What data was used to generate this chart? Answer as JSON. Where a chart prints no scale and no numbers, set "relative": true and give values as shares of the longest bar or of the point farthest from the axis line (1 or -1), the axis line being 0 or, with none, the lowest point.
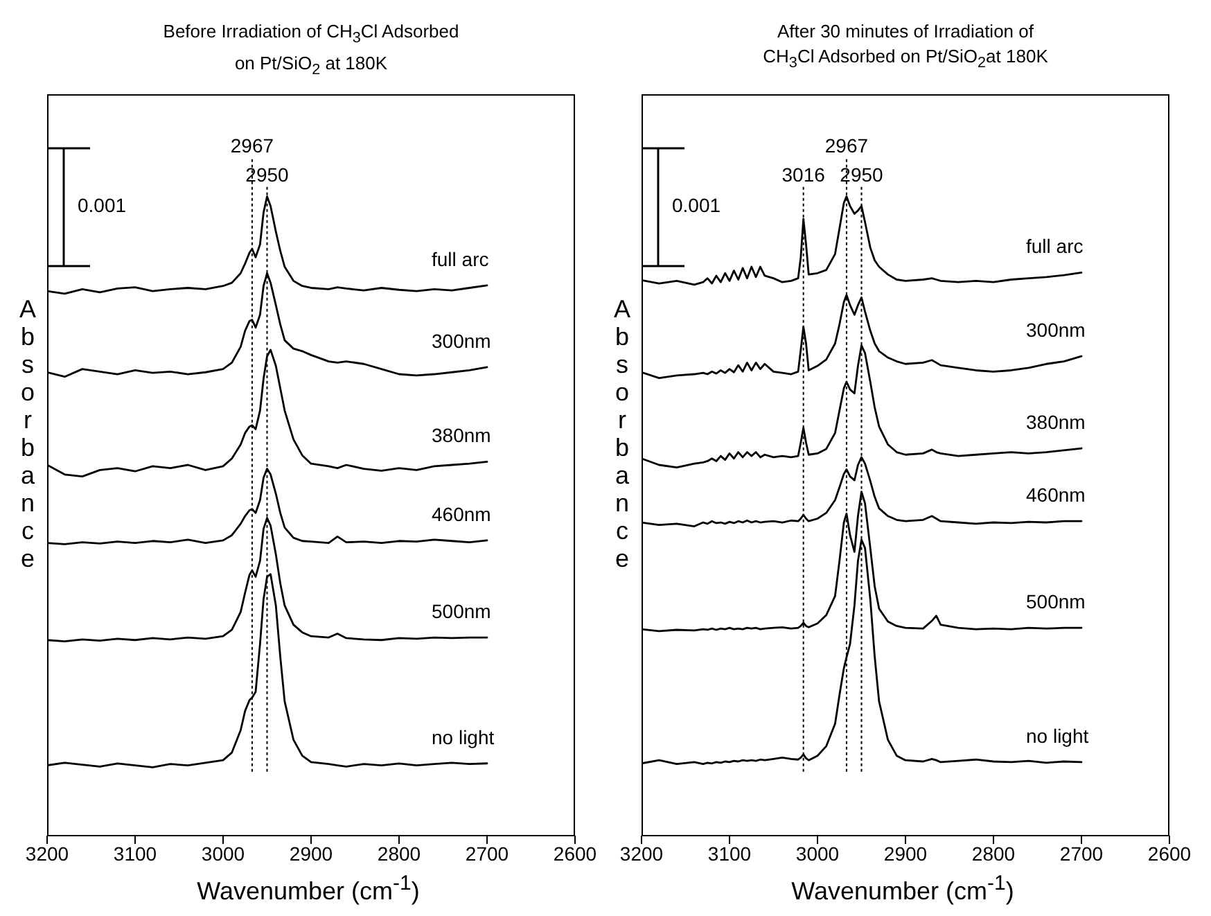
{
  "chart_data": [
    {
      "type": "line",
      "title": "Before Irradiation of CH$_{3}$Cl Adsorbed on Pt/SiO$_{2}$ at 180K",
      "xlabel": "Wavenumber (cm$^{-1}$)",
      "ylabel": "Absorbance",
      "relative": true,
      "xlim": [
        3200,
        2600
      ],
      "xticks": [
        3200,
        3100,
        3000,
        2900,
        2800,
        2700,
        2600
      ],
      "line_style": "solid",
      "annotations": [
        "0.001"
      ],
      "ref_lines": [
        {
          "axis": "x",
          "value": 2967,
          "label": "2967",
          "line_style": "dotted"
        },
        {
          "axis": "x",
          "value": 2950,
          "label": "2950",
          "line_style": "dotted"
        }
      ],
      "series": [
        {
          "name": "full arc",
          "color": "#000000",
          "x": [
            3200,
            3180,
            3160,
            3140,
            3120,
            3100,
            3080,
            3060,
            3040,
            3020,
            3000,
            2990,
            2980,
            2975,
            2970,
            2967,
            2963,
            2958,
            2954,
            2950,
            2946,
            2940,
            2935,
            2930,
            2920,
            2910,
            2900,
            2880,
            2870,
            2860,
            2840,
            2820,
            2800,
            2780,
            2760,
            2740,
            2720,
            2700
          ],
          "values": [
            0.852,
            0.848,
            0.855,
            0.85,
            0.856,
            0.858,
            0.852,
            0.855,
            0.857,
            0.855,
            0.86,
            0.865,
            0.88,
            0.895,
            0.912,
            0.918,
            0.905,
            0.925,
            0.975,
            1.0,
            0.985,
            0.945,
            0.915,
            0.89,
            0.868,
            0.86,
            0.857,
            0.855,
            0.858,
            0.856,
            0.853,
            0.857,
            0.854,
            0.852,
            0.855,
            0.853,
            0.857,
            0.861
          ]
        },
        {
          "name": "300nm",
          "color": "#000000",
          "x": [
            3200,
            3180,
            3160,
            3140,
            3120,
            3100,
            3080,
            3060,
            3040,
            3020,
            3000,
            2990,
            2980,
            2975,
            2970,
            2967,
            2963,
            2958,
            2954,
            2950,
            2946,
            2940,
            2935,
            2930,
            2920,
            2910,
            2900,
            2880,
            2870,
            2860,
            2840,
            2820,
            2800,
            2780,
            2760,
            2740,
            2720,
            2700
          ],
          "values": [
            0.725,
            0.718,
            0.73,
            0.726,
            0.722,
            0.728,
            0.724,
            0.726,
            0.722,
            0.725,
            0.73,
            0.74,
            0.765,
            0.79,
            0.805,
            0.807,
            0.795,
            0.815,
            0.86,
            0.88,
            0.865,
            0.83,
            0.8,
            0.775,
            0.762,
            0.758,
            0.752,
            0.742,
            0.74,
            0.742,
            0.738,
            0.73,
            0.722,
            0.72,
            0.722,
            0.725,
            0.728,
            0.733
          ]
        },
        {
          "name": "380nm",
          "color": "#000000",
          "x": [
            3200,
            3180,
            3160,
            3140,
            3120,
            3100,
            3080,
            3060,
            3040,
            3020,
            3000,
            2990,
            2980,
            2975,
            2970,
            2967,
            2963,
            2958,
            2954,
            2950,
            2946,
            2940,
            2935,
            2930,
            2920,
            2910,
            2900,
            2880,
            2870,
            2860,
            2840,
            2820,
            2800,
            2780,
            2760,
            2740,
            2720,
            2700
          ],
          "values": [
            0.58,
            0.565,
            0.562,
            0.572,
            0.575,
            0.57,
            0.578,
            0.575,
            0.58,
            0.572,
            0.578,
            0.59,
            0.612,
            0.63,
            0.64,
            0.642,
            0.636,
            0.665,
            0.715,
            0.75,
            0.76,
            0.735,
            0.7,
            0.665,
            0.62,
            0.595,
            0.582,
            0.578,
            0.575,
            0.58,
            0.574,
            0.571,
            0.575,
            0.572,
            0.578,
            0.58,
            0.582,
            0.585
          ]
        },
        {
          "name": "460nm",
          "color": "#000000",
          "x": [
            3200,
            3180,
            3160,
            3140,
            3120,
            3100,
            3080,
            3060,
            3040,
            3020,
            3000,
            2990,
            2980,
            2975,
            2970,
            2967,
            2963,
            2958,
            2954,
            2950,
            2946,
            2940,
            2935,
            2930,
            2920,
            2910,
            2900,
            2880,
            2870,
            2860,
            2840,
            2820,
            2800,
            2780,
            2760,
            2740,
            2720,
            2700
          ],
          "values": [
            0.458,
            0.456,
            0.459,
            0.457,
            0.46,
            0.458,
            0.461,
            0.459,
            0.463,
            0.458,
            0.462,
            0.47,
            0.488,
            0.5,
            0.509,
            0.511,
            0.505,
            0.525,
            0.56,
            0.574,
            0.565,
            0.535,
            0.505,
            0.482,
            0.466,
            0.461,
            0.46,
            0.458,
            0.468,
            0.459,
            0.46,
            0.458,
            0.461,
            0.46,
            0.463,
            0.461,
            0.459,
            0.462
          ]
        },
        {
          "name": "500nm",
          "color": "#000000",
          "x": [
            3200,
            3180,
            3160,
            3140,
            3120,
            3100,
            3080,
            3060,
            3040,
            3020,
            3000,
            2990,
            2980,
            2975,
            2970,
            2967,
            2963,
            2958,
            2954,
            2950,
            2946,
            2940,
            2935,
            2930,
            2920,
            2910,
            2900,
            2880,
            2870,
            2860,
            2840,
            2820,
            2800,
            2780,
            2760,
            2740,
            2720,
            2700
          ],
          "values": [
            0.306,
            0.304,
            0.307,
            0.305,
            0.308,
            0.306,
            0.309,
            0.307,
            0.31,
            0.308,
            0.312,
            0.322,
            0.35,
            0.38,
            0.408,
            0.415,
            0.405,
            0.43,
            0.48,
            0.497,
            0.485,
            0.44,
            0.395,
            0.36,
            0.33,
            0.318,
            0.312,
            0.31,
            0.316,
            0.309,
            0.307,
            0.306,
            0.309,
            0.308,
            0.31,
            0.309,
            0.31,
            0.31
          ]
        },
        {
          "name": "no light",
          "color": "#000000",
          "x": [
            3200,
            3180,
            3160,
            3140,
            3120,
            3100,
            3080,
            3060,
            3040,
            3020,
            3000,
            2990,
            2980,
            2975,
            2970,
            2967,
            2963,
            2958,
            2954,
            2950,
            2946,
            2940,
            2935,
            2930,
            2920,
            2910,
            2900,
            2880,
            2870,
            2860,
            2840,
            2820,
            2800,
            2780,
            2760,
            2740,
            2720,
            2700
          ],
          "values": [
            0.11,
            0.114,
            0.111,
            0.108,
            0.113,
            0.11,
            0.107,
            0.112,
            0.11,
            0.114,
            0.118,
            0.13,
            0.165,
            0.195,
            0.212,
            0.216,
            0.225,
            0.3,
            0.37,
            0.405,
            0.409,
            0.36,
            0.28,
            0.21,
            0.15,
            0.125,
            0.115,
            0.112,
            0.11,
            0.108,
            0.112,
            0.11,
            0.113,
            0.11,
            0.112,
            0.114,
            0.112,
            0.113
          ]
        }
      ]
    },
    {
      "type": "line",
      "title": "After 30 minutes of Irradiation of CH$_{3}$Cl Adsorbed on Pt/SiO$_{2}$at 180K",
      "xlabel": "Wavenumber (cm$^{-1}$)",
      "ylabel": "Absorbance",
      "relative": true,
      "xlim": [
        3200,
        2600
      ],
      "xticks": [
        3200,
        3100,
        3000,
        2900,
        2800,
        2700,
        2600
      ],
      "line_style": "solid",
      "annotations": [
        "0.001"
      ],
      "ref_lines": [
        {
          "axis": "x",
          "value": 3016,
          "label": "3016",
          "line_style": "dotted"
        },
        {
          "axis": "x",
          "value": 2967,
          "label": "2967",
          "line_style": "dotted"
        },
        {
          "axis": "x",
          "value": 2950,
          "label": "2950",
          "line_style": "dotted"
        }
      ],
      "series": [
        {
          "name": "full arc",
          "color": "#000000",
          "x": [
            3200,
            3180,
            3160,
            3140,
            3130,
            3125,
            3120,
            3115,
            3110,
            3105,
            3100,
            3095,
            3090,
            3085,
            3080,
            3075,
            3070,
            3065,
            3060,
            3050,
            3040,
            3030,
            3022,
            3019,
            3016,
            3013,
            3010,
            3000,
            2990,
            2980,
            2975,
            2970,
            2967,
            2963,
            2958,
            2954,
            2950,
            2946,
            2940,
            2935,
            2930,
            2920,
            2910,
            2900,
            2880,
            2870,
            2865,
            2860,
            2840,
            2820,
            2800,
            2780,
            2760,
            2740,
            2720,
            2700
          ],
          "values": [
            0.869,
            0.864,
            0.868,
            0.862,
            0.866,
            0.872,
            0.864,
            0.876,
            0.866,
            0.88,
            0.868,
            0.884,
            0.87,
            0.888,
            0.872,
            0.89,
            0.874,
            0.89,
            0.876,
            0.872,
            0.866,
            0.868,
            0.872,
            0.905,
            0.965,
            0.925,
            0.878,
            0.88,
            0.885,
            0.91,
            0.95,
            0.99,
            1.0,
            0.985,
            0.973,
            0.978,
            0.985,
            0.96,
            0.92,
            0.9,
            0.89,
            0.878,
            0.87,
            0.868,
            0.87,
            0.872,
            0.87,
            0.868,
            0.866,
            0.868,
            0.866,
            0.87,
            0.872,
            0.874,
            0.877,
            0.881
          ]
        },
        {
          "name": "300nm",
          "color": "#000000",
          "x": [
            3200,
            3180,
            3160,
            3140,
            3130,
            3125,
            3120,
            3115,
            3110,
            3105,
            3100,
            3095,
            3090,
            3085,
            3080,
            3075,
            3070,
            3065,
            3060,
            3050,
            3040,
            3030,
            3022,
            3019,
            3016,
            3013,
            3010,
            3000,
            2990,
            2980,
            2975,
            2970,
            2967,
            2963,
            2958,
            2954,
            2950,
            2946,
            2940,
            2935,
            2930,
            2920,
            2910,
            2900,
            2880,
            2870,
            2865,
            2860,
            2840,
            2820,
            2800,
            2780,
            2760,
            2740,
            2720,
            2700
          ],
          "values": [
            0.725,
            0.716,
            0.72,
            0.722,
            0.724,
            0.722,
            0.726,
            0.723,
            0.728,
            0.724,
            0.73,
            0.725,
            0.736,
            0.726,
            0.74,
            0.728,
            0.74,
            0.73,
            0.738,
            0.726,
            0.724,
            0.722,
            0.726,
            0.76,
            0.796,
            0.77,
            0.728,
            0.735,
            0.745,
            0.77,
            0.8,
            0.835,
            0.846,
            0.83,
            0.815,
            0.83,
            0.842,
            0.82,
            0.79,
            0.77,
            0.758,
            0.748,
            0.742,
            0.738,
            0.74,
            0.744,
            0.74,
            0.736,
            0.732,
            0.728,
            0.726,
            0.728,
            0.732,
            0.738,
            0.742,
            0.75
          ]
        },
        {
          "name": "380nm",
          "color": "#000000",
          "x": [
            3200,
            3180,
            3160,
            3140,
            3130,
            3125,
            3120,
            3115,
            3110,
            3105,
            3100,
            3095,
            3090,
            3085,
            3080,
            3075,
            3070,
            3065,
            3060,
            3050,
            3040,
            3030,
            3022,
            3019,
            3016,
            3013,
            3010,
            3000,
            2990,
            2980,
            2975,
            2970,
            2967,
            2963,
            2958,
            2954,
            2950,
            2946,
            2940,
            2935,
            2930,
            2920,
            2910,
            2900,
            2880,
            2870,
            2865,
            2860,
            2840,
            2820,
            2800,
            2780,
            2760,
            2740,
            2720,
            2700
          ],
          "values": [
            0.59,
            0.58,
            0.576,
            0.582,
            0.584,
            0.586,
            0.59,
            0.586,
            0.594,
            0.588,
            0.598,
            0.59,
            0.6,
            0.592,
            0.6,
            0.594,
            0.6,
            0.592,
            0.596,
            0.592,
            0.594,
            0.592,
            0.594,
            0.615,
            0.638,
            0.615,
            0.596,
            0.598,
            0.605,
            0.63,
            0.665,
            0.7,
            0.71,
            0.698,
            0.692,
            0.735,
            0.767,
            0.755,
            0.71,
            0.67,
            0.64,
            0.612,
            0.6,
            0.596,
            0.598,
            0.604,
            0.6,
            0.598,
            0.594,
            0.596,
            0.598,
            0.6,
            0.598,
            0.6,
            0.603,
            0.606
          ]
        },
        {
          "name": "460nm",
          "color": "#000000",
          "x": [
            3200,
            3180,
            3160,
            3140,
            3130,
            3125,
            3120,
            3115,
            3110,
            3105,
            3100,
            3095,
            3090,
            3085,
            3080,
            3075,
            3070,
            3065,
            3060,
            3050,
            3040,
            3030,
            3022,
            3019,
            3016,
            3013,
            3010,
            3000,
            2990,
            2980,
            2975,
            2970,
            2967,
            2963,
            2958,
            2954,
            2950,
            2946,
            2940,
            2935,
            2930,
            2920,
            2910,
            2900,
            2880,
            2870,
            2865,
            2860,
            2840,
            2820,
            2800,
            2780,
            2760,
            2740,
            2720,
            2700
          ],
          "values": [
            0.49,
            0.486,
            0.488,
            0.484,
            0.49,
            0.488,
            0.492,
            0.489,
            0.49,
            0.488,
            0.491,
            0.489,
            0.492,
            0.49,
            0.493,
            0.49,
            0.492,
            0.49,
            0.491,
            0.492,
            0.49,
            0.493,
            0.492,
            0.496,
            0.502,
            0.496,
            0.492,
            0.496,
            0.505,
            0.525,
            0.545,
            0.566,
            0.573,
            0.562,
            0.556,
            0.58,
            0.592,
            0.582,
            0.555,
            0.53,
            0.512,
            0.5,
            0.494,
            0.492,
            0.494,
            0.5,
            0.496,
            0.492,
            0.49,
            0.488,
            0.49,
            0.489,
            0.491,
            0.49,
            0.492,
            0.492
          ]
        },
        {
          "name": "500nm",
          "color": "#000000",
          "x": [
            3200,
            3180,
            3160,
            3140,
            3130,
            3125,
            3120,
            3115,
            3110,
            3105,
            3100,
            3095,
            3090,
            3085,
            3080,
            3075,
            3070,
            3065,
            3060,
            3050,
            3040,
            3030,
            3022,
            3019,
            3016,
            3013,
            3010,
            3000,
            2990,
            2980,
            2975,
            2970,
            2967,
            2963,
            2958,
            2954,
            2950,
            2946,
            2940,
            2935,
            2930,
            2920,
            2910,
            2900,
            2880,
            2870,
            2865,
            2860,
            2840,
            2820,
            2800,
            2780,
            2760,
            2740,
            2720,
            2700
          ],
          "values": [
            0.323,
            0.32,
            0.322,
            0.321,
            0.323,
            0.322,
            0.324,
            0.322,
            0.324,
            0.323,
            0.325,
            0.323,
            0.324,
            0.323,
            0.325,
            0.324,
            0.325,
            0.323,
            0.324,
            0.325,
            0.326,
            0.324,
            0.325,
            0.328,
            0.333,
            0.328,
            0.326,
            0.332,
            0.345,
            0.375,
            0.43,
            0.49,
            0.504,
            0.47,
            0.444,
            0.5,
            0.538,
            0.52,
            0.45,
            0.39,
            0.355,
            0.335,
            0.328,
            0.325,
            0.324,
            0.336,
            0.344,
            0.33,
            0.325,
            0.323,
            0.324,
            0.323,
            0.325,
            0.324,
            0.325,
            0.325
          ]
        },
        {
          "name": "no light",
          "color": "#000000",
          "x": [
            3200,
            3180,
            3160,
            3140,
            3130,
            3125,
            3120,
            3115,
            3110,
            3105,
            3100,
            3095,
            3090,
            3085,
            3080,
            3075,
            3070,
            3065,
            3060,
            3050,
            3040,
            3030,
            3022,
            3019,
            3016,
            3013,
            3010,
            3000,
            2990,
            2980,
            2975,
            2970,
            2967,
            2963,
            2958,
            2954,
            2950,
            2946,
            2940,
            2935,
            2930,
            2920,
            2910,
            2900,
            2880,
            2870,
            2865,
            2860,
            2840,
            2820,
            2800,
            2780,
            2760,
            2740,
            2720,
            2700
          ],
          "values": [
            0.113,
            0.118,
            0.112,
            0.115,
            0.112,
            0.114,
            0.113,
            0.115,
            0.114,
            0.116,
            0.115,
            0.117,
            0.116,
            0.118,
            0.117,
            0.118,
            0.117,
            0.119,
            0.118,
            0.12,
            0.122,
            0.12,
            0.119,
            0.122,
            0.127,
            0.121,
            0.118,
            0.125,
            0.14,
            0.175,
            0.22,
            0.262,
            0.279,
            0.3,
            0.36,
            0.43,
            0.463,
            0.45,
            0.37,
            0.28,
            0.21,
            0.15,
            0.125,
            0.118,
            0.116,
            0.12,
            0.118,
            0.115,
            0.117,
            0.119,
            0.116,
            0.115,
            0.117,
            0.114,
            0.116,
            0.115
          ]
        }
      ]
    }
  ]
}
